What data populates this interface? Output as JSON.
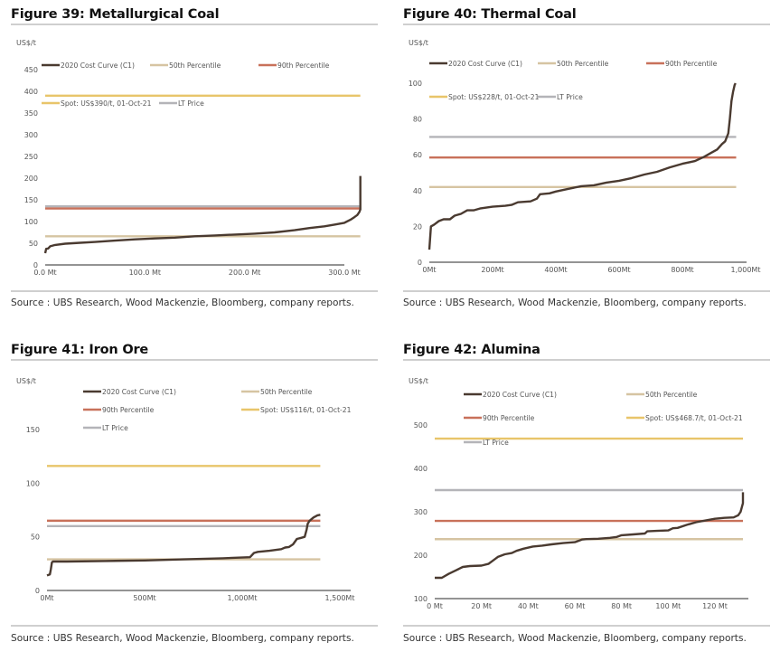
{
  "colors": {
    "cost_curve": "#4a3a30",
    "p50": "#d6c4a2",
    "p90": "#c8715a",
    "spot": "#e8c56a",
    "lt": "#b4b4b8",
    "axis": "#555555"
  },
  "source_text": "Source : UBS Research, Wood Mackenzie, Bloomberg, company reports.",
  "chart_data": [
    {
      "id": "fig39",
      "type": "line",
      "title": "Figure 39: Metallurgical Coal",
      "ylabel": "US$/t",
      "xlabel": "",
      "ylim": [
        0,
        450
      ],
      "yticks": [
        0,
        50,
        100,
        150,
        200,
        250,
        300,
        350,
        400,
        450
      ],
      "xlim": [
        0,
        340
      ],
      "xticks": [
        0,
        100,
        200,
        300
      ],
      "xtick_labels": [
        "0.0 Mt",
        "100.0 Mt",
        "200.0 Mt",
        "300.0 Mt"
      ],
      "grid": false,
      "legend": [
        {
          "key": "cost_curve",
          "label": "2020 Cost Curve (C1)"
        },
        {
          "key": "p50",
          "label": "50th Percentile"
        },
        {
          "key": "p90",
          "label": "90th Percentile"
        },
        {
          "key": "spot",
          "label": "Spot: US$390/t, 01-Oct-21"
        },
        {
          "key": "lt",
          "label": "LT Price"
        }
      ],
      "legend_placement": "top",
      "hlines": [
        {
          "key": "spot",
          "value": 390,
          "x_end": 316
        },
        {
          "key": "lt",
          "value": 135,
          "x_end": 316
        },
        {
          "key": "p90",
          "value": 130,
          "x_end": 316
        },
        {
          "key": "p50",
          "value": 66,
          "x_end": 316
        }
      ],
      "series": [
        {
          "name": "2020 Cost Curve (C1)",
          "key": "cost_curve",
          "x": [
            0,
            1,
            3,
            5,
            10,
            20,
            35,
            50,
            70,
            90,
            110,
            130,
            150,
            170,
            190,
            210,
            230,
            250,
            265,
            280,
            290,
            300,
            306,
            310,
            313,
            315,
            316,
            316,
            316
          ],
          "y": [
            27,
            37,
            38,
            43,
            46,
            49,
            51,
            53,
            56,
            59,
            61,
            63,
            66,
            68,
            70,
            72,
            75,
            80,
            85,
            89,
            93,
            97,
            104,
            110,
            115,
            122,
            128,
            175,
            205
          ]
        }
      ]
    },
    {
      "id": "fig40",
      "type": "line",
      "title": "Figure 40: Thermal Coal",
      "ylabel": "US$/t",
      "xlabel": "",
      "ylim": [
        0,
        100
      ],
      "yticks": [
        0,
        20,
        40,
        60,
        80,
        100
      ],
      "xlim": [
        0,
        1000
      ],
      "xticks": [
        0,
        200,
        400,
        600,
        800,
        1000
      ],
      "xtick_labels": [
        "0Mt",
        "200Mt",
        "400Mt",
        "600Mt",
        "800Mt",
        "1,000Mt"
      ],
      "grid": false,
      "legend": [
        {
          "key": "cost_curve",
          "label": "2020 Cost Curve (C1)"
        },
        {
          "key": "p50",
          "label": "50th Percentile"
        },
        {
          "key": "p90",
          "label": "90th Percentile"
        },
        {
          "key": "spot",
          "label": "Spot: US$228/t, 01-Oct-21"
        },
        {
          "key": "lt",
          "label": "LT Price"
        }
      ],
      "legend_placement": "top",
      "hlines": [
        {
          "key": "lt",
          "value": 70,
          "x_end": 970
        },
        {
          "key": "p90",
          "value": 58.5,
          "x_end": 970
        },
        {
          "key": "p50",
          "value": 42,
          "x_end": 970
        }
      ],
      "series": [
        {
          "name": "2020 Cost Curve (C1)",
          "key": "cost_curve",
          "x": [
            0,
            5,
            15,
            30,
            45,
            65,
            80,
            100,
            120,
            140,
            160,
            200,
            240,
            260,
            280,
            320,
            340,
            350,
            380,
            400,
            440,
            480,
            520,
            560,
            600,
            640,
            680,
            720,
            760,
            800,
            840,
            870,
            890,
            910,
            925,
            935,
            945,
            950,
            955,
            960,
            965,
            968
          ],
          "y": [
            7,
            20,
            21,
            23,
            24,
            24,
            26,
            27,
            29,
            29,
            30,
            31,
            31.5,
            32,
            33.5,
            34,
            35.5,
            38,
            38.5,
            39.5,
            41,
            42.5,
            43,
            44.5,
            45.5,
            47,
            49,
            50.5,
            53,
            55,
            56.5,
            59,
            61,
            63,
            66,
            67.5,
            72,
            80,
            90,
            95,
            99,
            100
          ]
        }
      ]
    },
    {
      "id": "fig41",
      "type": "line",
      "title": "Figure 41: Iron Ore",
      "ylabel": "US$/t",
      "xlabel": "",
      "ylim": [
        0,
        150
      ],
      "yticks": [
        0,
        50,
        100,
        150
      ],
      "xlim": [
        0,
        1500
      ],
      "xticks": [
        0,
        500,
        1000,
        1500
      ],
      "xtick_labels": [
        "0Mt",
        "500Mt",
        "1,000Mt",
        "1,500Mt"
      ],
      "grid": false,
      "legend": [
        {
          "key": "cost_curve",
          "label": "2020 Cost Curve (C1)"
        },
        {
          "key": "p50",
          "label": "50th Percentile"
        },
        {
          "key": "p90",
          "label": "90th Percentile"
        },
        {
          "key": "spot",
          "label": "Spot: US$116/t, 01-Oct-21"
        },
        {
          "key": "lt",
          "label": "LT Price"
        }
      ],
      "legend_placement": "top",
      "hlines": [
        {
          "key": "spot",
          "value": 116,
          "x_end": 1400
        },
        {
          "key": "p90",
          "value": 65,
          "x_end": 1400
        },
        {
          "key": "lt",
          "value": 60,
          "x_end": 1400
        },
        {
          "key": "p50",
          "value": 29,
          "x_end": 1400
        }
      ],
      "series": [
        {
          "name": "2020 Cost Curve (C1)",
          "key": "cost_curve",
          "x": [
            0,
            15,
            20,
            25,
            30,
            100,
            300,
            500,
            700,
            900,
            1040,
            1060,
            1080,
            1140,
            1200,
            1220,
            1240,
            1260,
            1280,
            1300,
            1320,
            1330,
            1335,
            1345,
            1365,
            1385,
            1400
          ],
          "y": [
            14,
            15,
            20,
            26,
            27,
            27,
            27.5,
            28,
            29,
            30,
            31,
            35,
            36,
            37,
            38.5,
            40,
            40.5,
            43,
            48,
            49,
            50,
            57,
            62,
            65,
            68,
            70,
            70.5
          ]
        }
      ]
    },
    {
      "id": "fig42",
      "type": "line",
      "title": "Figure 42: Alumina",
      "ylabel": "US$/t",
      "xlabel": "",
      "ylim": [
        100,
        500
      ],
      "yticks": [
        100,
        200,
        300,
        400,
        500
      ],
      "xlim": [
        0,
        133
      ],
      "xticks": [
        0,
        20,
        40,
        60,
        80,
        100,
        120
      ],
      "xtick_labels": [
        "0 Mt",
        "20 Mt",
        "40 Mt",
        "60 Mt",
        "80 Mt",
        "100 Mt",
        "120 Mt"
      ],
      "grid": false,
      "legend": [
        {
          "key": "cost_curve",
          "label": "2020 Cost Curve (C1)"
        },
        {
          "key": "p50",
          "label": "50th Percentile"
        },
        {
          "key": "p90",
          "label": "90th Percentile"
        },
        {
          "key": "spot",
          "label": "Spot: US$468.7/t, 01-Oct-21"
        },
        {
          "key": "lt",
          "label": "LT Price"
        }
      ],
      "legend_placement": "top",
      "hlines": [
        {
          "key": "spot",
          "value": 468.7,
          "x_end": 132
        },
        {
          "key": "lt",
          "value": 350,
          "x_end": 132
        },
        {
          "key": "p90",
          "value": 279,
          "x_end": 132
        },
        {
          "key": "p50",
          "value": 237,
          "x_end": 132
        }
      ],
      "series": [
        {
          "name": "2020 Cost Curve (C1)",
          "key": "cost_curve",
          "x": [
            0,
            3,
            6,
            9,
            12,
            15,
            20,
            23,
            25,
            27,
            30,
            33,
            35,
            38,
            42,
            46,
            50,
            55,
            60,
            63,
            65,
            70,
            75,
            78,
            80,
            85,
            90,
            91,
            95,
            100,
            102,
            104,
            108,
            112,
            116,
            120,
            124,
            128,
            130,
            131,
            132,
            132
          ],
          "y": [
            148,
            148,
            157,
            165,
            173,
            175,
            176,
            180,
            188,
            196,
            202,
            205,
            210,
            215,
            220,
            222,
            225,
            228,
            230,
            236,
            237,
            238,
            240,
            242,
            246,
            248,
            250,
            255,
            256,
            257,
            262,
            263,
            270,
            276,
            280,
            284,
            286,
            287,
            292,
            300,
            320,
            345
          ]
        }
      ]
    }
  ]
}
